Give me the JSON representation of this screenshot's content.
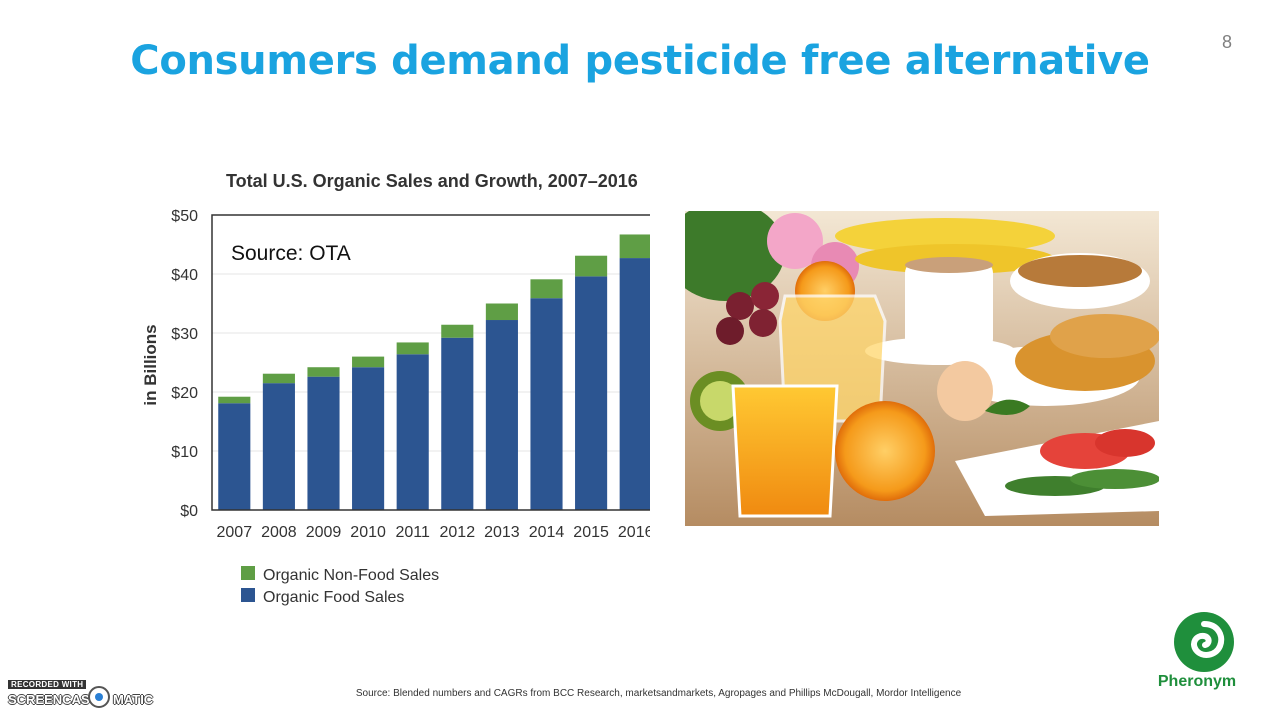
{
  "slide": {
    "title": "Consumers demand pesticide free alternative",
    "page_number": "8",
    "footnote": "Source: Blended numbers and CAGRs from BCC Research, marketsandmarkets, Agropages and Phillips McDougall, Mordor Intelligence"
  },
  "logo": {
    "name": "Pheronym",
    "icon": "spiral-leaf-icon",
    "color": "#1f8f3c"
  },
  "watermark": {
    "top": "RECORDED WITH",
    "left": "SCREENCAST",
    "right": "MATIC"
  },
  "photo": {
    "description_icon": "breakfast-photo"
  },
  "chart_data": {
    "type": "bar",
    "stacked": true,
    "title": "Total U.S. Organic Sales and Growth, 2007–2016",
    "annotation": "Source: OTA",
    "ylabel": "in Billions",
    "xlabel": "",
    "ylim": [
      0,
      50
    ],
    "yticks": [
      {
        "value": 0,
        "label": "$0"
      },
      {
        "value": 10,
        "label": "$10"
      },
      {
        "value": 20,
        "label": "$20"
      },
      {
        "value": 30,
        "label": "$30"
      },
      {
        "value": 40,
        "label": "$40"
      },
      {
        "value": 50,
        "label": "$50"
      }
    ],
    "grid": true,
    "legend_position": "bottom-left",
    "categories": [
      "2007",
      "2008",
      "2009",
      "2010",
      "2011",
      "2012",
      "2013",
      "2014",
      "2015",
      "2016"
    ],
    "series": [
      {
        "name": "Organic Food Sales",
        "color": "#2c5591",
        "values": [
          18.1,
          21.5,
          22.6,
          24.2,
          26.4,
          29.2,
          32.2,
          35.9,
          39.6,
          42.7
        ]
      },
      {
        "name": "Organic Non-Food Sales",
        "color": "#5f9e45",
        "values": [
          1.1,
          1.6,
          1.6,
          1.8,
          2.0,
          2.2,
          2.8,
          3.2,
          3.5,
          4.0
        ]
      }
    ],
    "legend_order": [
      "Organic Non-Food Sales",
      "Organic Food Sales"
    ]
  }
}
